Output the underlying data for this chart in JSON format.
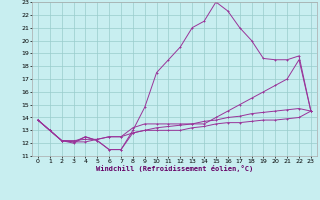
{
  "xlabel": "Windchill (Refroidissement éolien,°C)",
  "xlim": [
    -0.5,
    23.5
  ],
  "ylim": [
    11,
    23
  ],
  "xticks": [
    0,
    1,
    2,
    3,
    4,
    5,
    6,
    7,
    8,
    9,
    10,
    11,
    12,
    13,
    14,
    15,
    16,
    17,
    18,
    19,
    20,
    21,
    22,
    23
  ],
  "yticks": [
    11,
    12,
    13,
    14,
    15,
    16,
    17,
    18,
    19,
    20,
    21,
    22,
    23
  ],
  "bg_color": "#c8eef0",
  "grid_color": "#99cccc",
  "line_color": "#993399",
  "line1_x": [
    0,
    1,
    2,
    3,
    4,
    5,
    6,
    7,
    8,
    9,
    10,
    11,
    12,
    13,
    14,
    15,
    16,
    17,
    18,
    19,
    20,
    21,
    22,
    23
  ],
  "line1_y": [
    13.8,
    13.0,
    12.2,
    12.0,
    12.5,
    12.2,
    11.5,
    11.5,
    13.0,
    14.8,
    17.5,
    18.5,
    19.5,
    21.0,
    21.5,
    23.0,
    22.3,
    21.0,
    20.0,
    18.6,
    18.5,
    18.5,
    18.8,
    14.5
  ],
  "line2_x": [
    0,
    1,
    2,
    3,
    4,
    5,
    6,
    7,
    8,
    9,
    10,
    11,
    12,
    13,
    14,
    15,
    16,
    17,
    18,
    19,
    20,
    21,
    22,
    23
  ],
  "line2_y": [
    13.8,
    13.0,
    12.2,
    12.1,
    12.1,
    12.3,
    12.5,
    12.5,
    12.8,
    13.0,
    13.2,
    13.3,
    13.4,
    13.5,
    13.7,
    13.8,
    14.0,
    14.1,
    14.3,
    14.4,
    14.5,
    14.6,
    14.7,
    14.5
  ],
  "line3_x": [
    0,
    1,
    2,
    3,
    4,
    5,
    6,
    7,
    8,
    9,
    10,
    11,
    12,
    13,
    14,
    15,
    16,
    17,
    18,
    19,
    20,
    21,
    22,
    23
  ],
  "line3_y": [
    13.8,
    13.0,
    12.2,
    12.1,
    12.5,
    12.2,
    11.5,
    11.5,
    12.8,
    13.0,
    13.0,
    13.0,
    13.0,
    13.2,
    13.3,
    13.5,
    13.6,
    13.6,
    13.7,
    13.8,
    13.8,
    13.9,
    14.0,
    14.5
  ],
  "line4_x": [
    0,
    1,
    2,
    3,
    4,
    5,
    6,
    7,
    8,
    9,
    10,
    11,
    12,
    13,
    14,
    15,
    16,
    17,
    18,
    19,
    20,
    21,
    22,
    23
  ],
  "line4_y": [
    13.8,
    13.0,
    12.2,
    12.2,
    12.3,
    12.3,
    12.5,
    12.5,
    13.2,
    13.5,
    13.5,
    13.5,
    13.5,
    13.5,
    13.5,
    14.0,
    14.5,
    15.0,
    15.5,
    16.0,
    16.5,
    17.0,
    18.5,
    14.5
  ]
}
